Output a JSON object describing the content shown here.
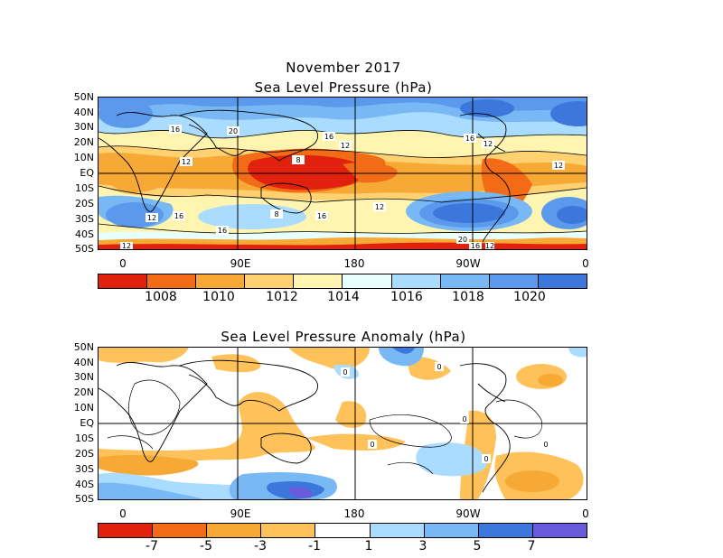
{
  "titles": {
    "month": "November 2017",
    "top": "Sea Level Pressure (hPa)",
    "bottom": "Sea Level Pressure Anomaly (hPa)"
  },
  "lat_labels": [
    "50N",
    "40N",
    "30N",
    "20N",
    "10N",
    "EQ",
    "10S",
    "20S",
    "30S",
    "40S",
    "50S"
  ],
  "lon_labels": [
    "0",
    "90E",
    "180",
    "90W",
    "0"
  ],
  "top_map": {
    "colorbar_labels": [
      "1008",
      "1010",
      "1012",
      "1014",
      "1016",
      "1018",
      "1020"
    ],
    "colorbar_colors": [
      "#e0210d",
      "#f26b16",
      "#f7a936",
      "#ffd170",
      "#fff4b0",
      "#e8ffff",
      "#aadcff",
      "#78b9f5",
      "#5a99ec",
      "#3c78dc"
    ],
    "contour_labels": [
      "16",
      "20",
      "16",
      "12",
      "12",
      "16",
      "12",
      "12",
      "8",
      "12",
      "16",
      "16",
      "8",
      "16",
      "12",
      "12",
      "20",
      "16",
      "12"
    ]
  },
  "bottom_map": {
    "colorbar_labels": [
      "-7",
      "-5",
      "-3",
      "-1",
      "1",
      "3",
      "5",
      "7"
    ],
    "colorbar_colors": [
      "#e0210d",
      "#f26b16",
      "#f7a936",
      "#ffc15a",
      "#ffffff",
      "#aadcff",
      "#78b9f5",
      "#3c78dc",
      "#6a5adc"
    ],
    "contour_labels": [
      "0",
      "0",
      "0",
      "0",
      "0",
      "0"
    ]
  }
}
